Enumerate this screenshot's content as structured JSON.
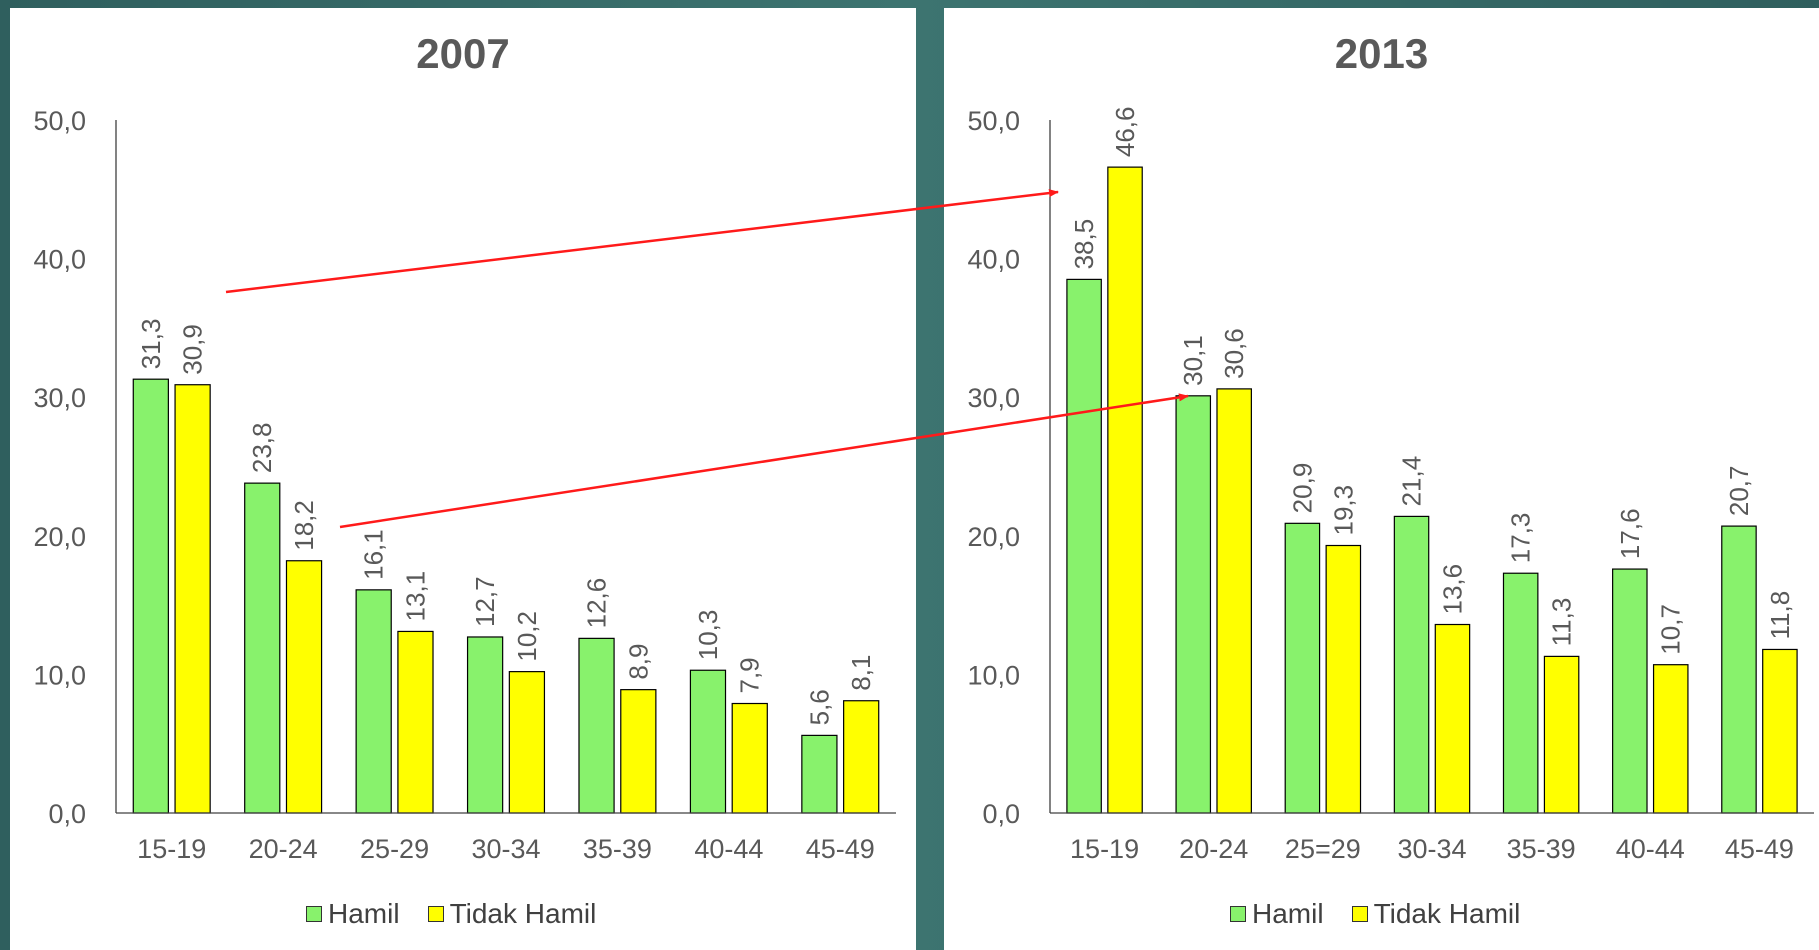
{
  "colors": {
    "hamil": "#88F26C",
    "tidak_hamil": "#FFFF00",
    "arrow": "#FF1A1A",
    "text": "#595959",
    "axis": "#404040"
  },
  "chart_data": [
    {
      "type": "bar",
      "title": "2007",
      "categories": [
        "15-19",
        "20-24",
        "25-29",
        "30-34",
        "35-39",
        "40-44",
        "45-49"
      ],
      "series": [
        {
          "name": "Hamil",
          "values": [
            31.3,
            23.8,
            16.1,
            12.7,
            12.6,
            10.3,
            5.6
          ],
          "labels": [
            "31,3",
            "23,8",
            "16,1",
            "12,7",
            "12,6",
            "10,3",
            "5,6"
          ]
        },
        {
          "name": "Tidak Hamil",
          "values": [
            30.9,
            18.2,
            13.1,
            10.2,
            8.9,
            7.9,
            8.1
          ],
          "labels": [
            "30,9",
            "18,2",
            "13,1",
            "10,2",
            "8,9",
            "7,9",
            "8,1"
          ]
        }
      ],
      "yticks": [
        "0,0",
        "10,0",
        "20,0",
        "30,0",
        "40,0",
        "50,0"
      ],
      "ylim": [
        0,
        50
      ],
      "legend": "bottom",
      "grid": false
    },
    {
      "type": "bar",
      "title": "2013",
      "categories": [
        "15-19",
        "20-24",
        "25=29",
        "30-34",
        "35-39",
        "40-44",
        "45-49"
      ],
      "series": [
        {
          "name": "Hamil",
          "values": [
            38.5,
            30.1,
            20.9,
            21.4,
            17.3,
            17.6,
            20.7
          ],
          "labels": [
            "38,5",
            "30,1",
            "20,9",
            "21,4",
            "17,3",
            "17,6",
            "20,7"
          ]
        },
        {
          "name": "Tidak Hamil",
          "values": [
            46.6,
            30.6,
            19.3,
            13.6,
            11.3,
            10.7,
            11.8
          ],
          "labels": [
            "46,6",
            "30,6",
            "19,3",
            "13,6",
            "11,3",
            "10,7",
            "11,8"
          ]
        }
      ],
      "yticks": [
        "0,0",
        "10,0",
        "20,0",
        "30,0",
        "40,0",
        "50,0"
      ],
      "ylim": [
        0,
        50
      ],
      "legend": "bottom",
      "grid": false
    }
  ]
}
